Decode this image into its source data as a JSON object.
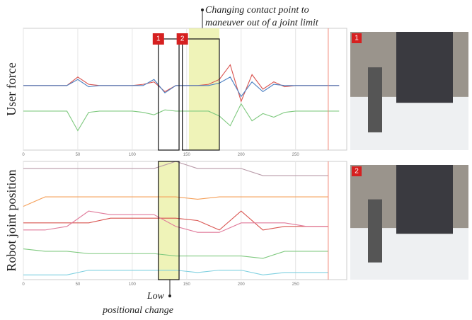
{
  "chart_data": [
    {
      "type": "line",
      "y_label": "User force",
      "x": [
        0,
        10,
        20,
        30,
        40,
        50,
        60,
        70,
        80,
        90,
        100,
        110,
        120,
        130,
        140,
        150,
        160,
        170,
        180,
        190,
        200,
        210,
        220,
        230,
        240,
        250,
        260,
        270,
        280,
        290
      ],
      "xlim": [
        0,
        297
      ],
      "xticks": [
        0,
        50,
        100,
        150,
        200,
        250
      ],
      "ylim": [
        0,
        100
      ],
      "grid": true,
      "vline": 280,
      "highlight": [
        152,
        180
      ],
      "boxes": [
        {
          "label": "1",
          "xlim": [
            124,
            143
          ]
        },
        {
          "label": "2",
          "xlim": [
            146,
            180
          ]
        }
      ],
      "series": [
        {
          "name": null,
          "color": "#d9534f",
          "values": [
            53,
            53,
            53,
            53,
            53,
            60,
            54,
            53,
            53,
            53,
            53,
            54,
            56,
            48,
            53,
            53,
            53,
            54,
            58,
            70,
            40,
            62,
            50,
            56,
            52,
            53,
            53,
            53,
            53,
            53
          ]
        },
        {
          "name": null,
          "color": "#4a7fc1",
          "values": [
            53,
            53,
            53,
            53,
            53,
            58,
            52,
            53,
            53,
            53,
            53,
            53,
            58,
            47,
            53,
            53,
            53,
            53,
            55,
            60,
            44,
            56,
            48,
            54,
            53,
            53,
            53,
            53,
            53,
            53
          ]
        },
        {
          "name": null,
          "color": "#7fc97f",
          "values": [
            32,
            32,
            32,
            32,
            32,
            16,
            31,
            32,
            32,
            32,
            32,
            31,
            29,
            33,
            32,
            32,
            32,
            32,
            28,
            20,
            38,
            24,
            30,
            27,
            31,
            32,
            32,
            32,
            32,
            32
          ]
        }
      ]
    },
    {
      "type": "line",
      "y_label": "Robot joint position",
      "x": [
        0,
        20,
        40,
        60,
        80,
        100,
        120,
        140,
        160,
        180,
        200,
        220,
        240,
        260,
        280
      ],
      "xlim": [
        0,
        297
      ],
      "xticks": [
        0,
        50,
        100,
        150,
        200,
        250
      ],
      "ylim": [
        0,
        100
      ],
      "grid": true,
      "vline": 280,
      "highlight": [
        124,
        143
      ],
      "boxes": [
        {
          "xlim": [
            124,
            143
          ]
        }
      ],
      "series": [
        {
          "name": null,
          "color": "#b89aa8",
          "values": [
            94,
            94,
            94,
            94,
            94,
            94,
            94,
            100,
            94,
            94,
            94,
            88,
            88,
            88,
            88
          ]
        },
        {
          "name": null,
          "color": "#f5a05a",
          "values": [
            62,
            70,
            70,
            70,
            70,
            70,
            70,
            70,
            68,
            70,
            70,
            70,
            70,
            70,
            70
          ]
        },
        {
          "name": null,
          "color": "#d9534f",
          "values": [
            48,
            48,
            48,
            48,
            52,
            52,
            52,
            52,
            50,
            42,
            58,
            42,
            45,
            45,
            45
          ]
        },
        {
          "name": null,
          "color": "#e07a9a",
          "values": [
            42,
            42,
            45,
            58,
            55,
            55,
            55,
            45,
            40,
            40,
            48,
            48,
            48,
            45,
            45
          ]
        },
        {
          "name": null,
          "color": "#7fc97f",
          "values": [
            26,
            24,
            24,
            22,
            22,
            22,
            22,
            20,
            20,
            20,
            20,
            18,
            24,
            24,
            24
          ]
        },
        {
          "name": null,
          "color": "#7fd0e0",
          "values": [
            4,
            4,
            4,
            8,
            8,
            8,
            8,
            8,
            6,
            8,
            8,
            4,
            6,
            6,
            6
          ]
        }
      ]
    }
  ],
  "annotations": {
    "top": [
      "Changing contact point to",
      "maneuver out of a joint limit"
    ],
    "bottom": [
      "Low",
      "positional change"
    ]
  },
  "photos": [
    {
      "label": "1"
    },
    {
      "label": "2"
    }
  ]
}
